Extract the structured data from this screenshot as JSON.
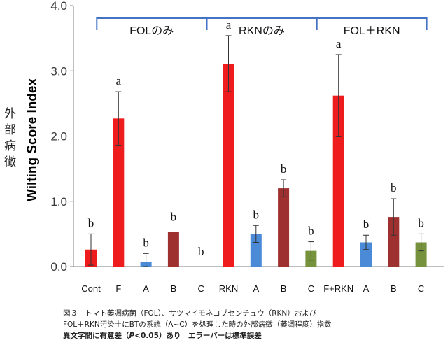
{
  "chart_data": {
    "type": "bar",
    "ylabel": "Wilting Score Index",
    "ylabel_jp": "外部病徴",
    "ylim": [
      0,
      4
    ],
    "yticks": [
      "0.0",
      "1.0",
      "2.0",
      "3.0",
      "4.0"
    ],
    "ytick_values": [
      0,
      1,
      2,
      3,
      4
    ],
    "grid": false,
    "categories": [
      "Cont",
      "F",
      "A",
      "B",
      "C",
      "RKN",
      "A",
      "B",
      "C",
      "F+RKN",
      "A",
      "B",
      "C"
    ],
    "values": [
      0.26,
      2.27,
      0.07,
      0.53,
      0.0,
      3.11,
      0.5,
      1.2,
      0.24,
      2.62,
      0.37,
      0.76,
      0.37
    ],
    "errors": [
      0.24,
      0.41,
      0.13,
      0.0,
      0.0,
      0.43,
      0.13,
      0.13,
      0.14,
      0.63,
      0.11,
      0.28,
      0.13
    ],
    "colors": [
      "#ee1c1c",
      "#ee1c1c",
      "#4a8ad6",
      "#9e3030",
      "#ee1c1c",
      "#ee1c1c",
      "#4a8ad6",
      "#9e3030",
      "#76923c",
      "#ee1c1c",
      "#4a8ad6",
      "#9e3030",
      "#76923c"
    ],
    "significance": [
      "b",
      "a",
      "b",
      "b",
      "b",
      "a",
      "b",
      "b",
      "b",
      "a",
      "b",
      "b",
      "b"
    ],
    "groups": [
      {
        "label": "FOLのみ",
        "from": 1,
        "to": 4
      },
      {
        "label": "RKNのみ",
        "from": 5,
        "to": 8
      },
      {
        "label": "FOL＋RKN",
        "from": 9,
        "to": 12
      }
    ],
    "bracket_color": "#4472c4"
  },
  "caption": {
    "line1": "図３　トマト萎凋病菌（FOL）、サツマイモネコブセンチュウ（RKN）および",
    "line2": "FOL＋RKN汚染土にBTの系統（A~C）を処理した時の外部病徴（萎凋程度）指数",
    "line3_a": "異文字間に有意差（",
    "line3_p": "P",
    "line3_b": "<0.05）あり　エラーバーは標準誤差"
  }
}
